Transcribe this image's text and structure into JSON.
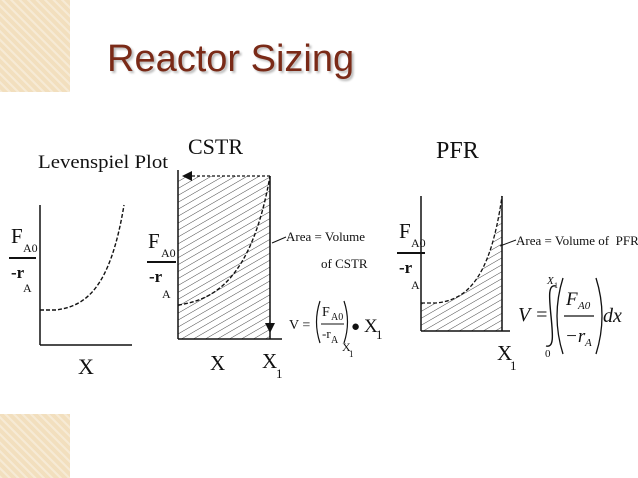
{
  "slide": {
    "title": "Reactor Sizing"
  },
  "panels": {
    "levenspiel": {
      "heading": "Levenspiel Plot",
      "y_label_num": "F",
      "y_label_num_sub": "A0",
      "y_label_den": "-r",
      "y_label_den_sub": "A",
      "x_label": "X"
    },
    "cstr": {
      "heading": "CSTR",
      "y_label_num": "F",
      "y_label_num_sub": "A0",
      "y_label_den": "-r",
      "y_label_den_sub": "A",
      "x_label": "X",
      "x1_label": "X",
      "x1_sub": "1",
      "annotation_line1": "Area = Volume",
      "annotation_line2": "of CSTR",
      "equation": {
        "lhs": "V =",
        "num": "F",
        "num_sub": "A0",
        "den": "-r",
        "den_sub": "A",
        "eval_sub": "X",
        "eval_sub_sub": "1",
        "bullet": "●",
        "rhs": "X",
        "rhs_sub": "1"
      }
    },
    "pfr": {
      "heading": "PFR",
      "y_label_num": "F",
      "y_label_num_sub": "A0",
      "y_label_den": "-r",
      "y_label_den_sub": "A",
      "x1_label": "X",
      "x1_sub": "1",
      "annotation": "Area = Volume of  PFR",
      "equation": {
        "lhs": "V =",
        "upper_limit": "X",
        "upper_limit_sub": "1",
        "lower_limit": "0",
        "num": "F",
        "num_sub": "A0",
        "den": "−r",
        "den_sub": "A",
        "differential": "dx"
      }
    }
  }
}
